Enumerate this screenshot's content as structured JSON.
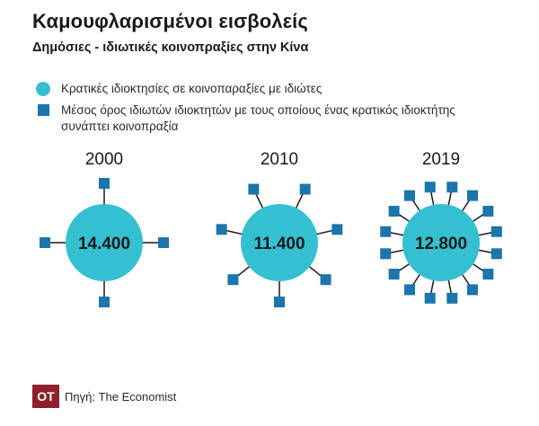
{
  "header": {
    "title": "Καμουφλαρισμένοι εισβολείς",
    "subtitle": "Δημόσιες - ιδιωτικές κοινοπραξίες στην Κίνα"
  },
  "legend": {
    "items": [
      {
        "label": "Κρατικές ιδιοκτησίες σε κοινοπαραξίες με ιδιώτες",
        "marker": "circle"
      },
      {
        "label": "Μέσος όρος ιδιωτών ιδιοκτητών με τους οποίους ένας κρατικός ιδιοκτήτης συνάπτει κοινοπραξία",
        "marker": "square"
      }
    ]
  },
  "colors": {
    "circle": "#35c0d2",
    "square": "#1c75ac",
    "spoke": "#1a1a1a",
    "logo_bg": "#8f1f2c"
  },
  "chart_data": {
    "type": "other",
    "categories": [
      "2000",
      "2010",
      "2019"
    ],
    "series": [
      {
        "name": "Κρατικές ιδιοκτησίες σε κοινοπαραξίες με ιδιώτες",
        "values": [
          14400,
          11400,
          12800
        ],
        "labels": [
          "14.400",
          "11.400",
          "12.800"
        ]
      },
      {
        "name": "Μέσος όρος ιδιωτών ιδιοκτητών με τους οποίους ένας κρατικός ιδιοκτήτης συνάπτει κοινοπραξία",
        "values": [
          4,
          7,
          16
        ]
      }
    ]
  },
  "footer": {
    "logo_text": "OT",
    "source": "Πηγή: The Economist"
  }
}
